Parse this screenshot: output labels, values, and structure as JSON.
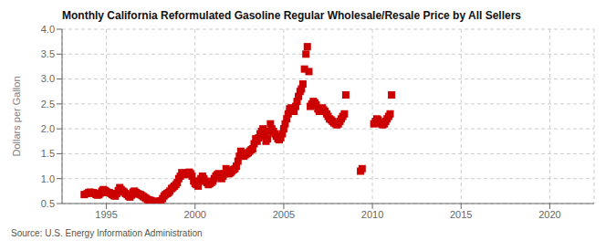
{
  "chart_data": {
    "type": "scatter",
    "title": "Monthly California Reformulated Gasoline Regular Wholesale/Resale Price by All Sellers",
    "ylabel": "Dollars per Gallon",
    "source": "Source: U.S. Energy Information Administration",
    "color": "#CC0000",
    "marker": "square",
    "grid": true,
    "xlim": [
      1992.5,
      2022.5
    ],
    "ylim": [
      0.5,
      4.0
    ],
    "xticks": [
      1995,
      2000,
      2005,
      2010,
      2015,
      2020
    ],
    "yticks": [
      0.5,
      {
        "value": 1.0,
        "label": "1.0"
      },
      1.5,
      {
        "value": 2.0,
        "label": "2.0"
      },
      2.5,
      {
        "value": 3.0,
        "label": "3.0"
      },
      3.5,
      {
        "value": 4.0,
        "label": "4.0"
      }
    ],
    "x": [
      1993.75,
      1993.92,
      1994.0,
      1994.08,
      1994.17,
      1994.25,
      1994.33,
      1994.42,
      1994.5,
      1994.58,
      1994.67,
      1994.75,
      1994.83,
      1994.92,
      1995.0,
      1995.08,
      1995.17,
      1995.25,
      1995.33,
      1995.42,
      1995.5,
      1995.58,
      1995.67,
      1995.75,
      1995.83,
      1995.92,
      1996.0,
      1996.08,
      1996.17,
      1996.25,
      1996.33,
      1996.42,
      1996.5,
      1996.58,
      1996.67,
      1996.75,
      1996.83,
      1996.92,
      1997.0,
      1997.08,
      1997.17,
      1997.25,
      1997.33,
      1997.42,
      1997.5,
      1997.58,
      1997.67,
      1997.75,
      1997.83,
      1997.92,
      1998.0,
      1998.08,
      1998.17,
      1998.25,
      1998.33,
      1998.42,
      1998.5,
      1998.58,
      1998.67,
      1998.75,
      1998.83,
      1998.92,
      1999.0,
      1999.08,
      1999.17,
      1999.25,
      1999.33,
      1999.42,
      1999.5,
      1999.58,
      1999.67,
      1999.75,
      1999.83,
      1999.92,
      2000.0,
      2000.08,
      2000.17,
      2000.25,
      2000.33,
      2000.42,
      2000.5,
      2000.58,
      2000.67,
      2000.75,
      2000.83,
      2000.92,
      2001.0,
      2001.08,
      2001.17,
      2001.25,
      2001.33,
      2001.42,
      2001.5,
      2001.58,
      2001.67,
      2001.75,
      2001.83,
      2001.92,
      2002.0,
      2002.08,
      2002.17,
      2002.25,
      2002.33,
      2002.42,
      2002.5,
      2002.58,
      2002.67,
      2002.75,
      2002.83,
      2002.92,
      2003.0,
      2003.08,
      2003.17,
      2003.25,
      2003.33,
      2003.42,
      2003.5,
      2003.58,
      2003.67,
      2003.75,
      2003.83,
      2003.92,
      2004.0,
      2004.08,
      2004.17,
      2004.25,
      2004.33,
      2004.42,
      2004.5,
      2004.58,
      2004.67,
      2004.75,
      2004.83,
      2004.92,
      2005.0,
      2005.08,
      2005.17,
      2005.25,
      2005.33,
      2005.42,
      2005.5,
      2005.58,
      2005.67,
      2005.75,
      2005.83,
      2005.92,
      2006.0,
      2006.08,
      2006.17,
      2006.25,
      2006.33,
      2006.42,
      2006.5,
      2006.58,
      2006.67,
      2006.75,
      2006.83,
      2006.92,
      2007.0,
      2007.08,
      2007.17,
      2007.25,
      2007.33,
      2007.42,
      2007.5,
      2007.58,
      2007.67,
      2007.75,
      2007.83,
      2007.92,
      2008.0,
      2008.08,
      2008.17,
      2008.25,
      2008.33,
      2008.42,
      2008.5,
      2009.33,
      2009.42,
      2010.08,
      2010.17,
      2010.25,
      2010.33,
      2010.42,
      2010.5,
      2010.58,
      2010.67,
      2010.75,
      2010.83,
      2010.92,
      2011.0,
      2011.08
    ],
    "values": [
      0.68,
      0.7,
      0.72,
      0.73,
      0.72,
      0.72,
      0.7,
      0.68,
      0.67,
      0.68,
      0.71,
      0.75,
      0.78,
      0.76,
      0.74,
      0.72,
      0.72,
      0.7,
      0.68,
      0.66,
      0.65,
      0.7,
      0.76,
      0.82,
      0.78,
      0.75,
      0.73,
      0.7,
      0.68,
      0.65,
      0.63,
      0.67,
      0.73,
      0.75,
      0.72,
      0.7,
      0.69,
      0.68,
      0.66,
      0.64,
      0.62,
      0.6,
      0.58,
      0.57,
      0.56,
      0.55,
      0.53,
      0.52,
      0.52,
      0.54,
      0.55,
      0.55,
      0.6,
      0.65,
      0.68,
      0.7,
      0.72,
      0.75,
      0.8,
      0.82,
      0.85,
      0.88,
      0.92,
      1.0,
      1.05,
      1.12,
      1.1,
      1.08,
      1.1,
      1.12,
      1.13,
      1.1,
      1.05,
      0.95,
      0.9,
      0.88,
      0.85,
      0.95,
      1.0,
      1.05,
      1.0,
      0.95,
      0.92,
      0.88,
      0.9,
      0.92,
      0.95,
      1.0,
      1.05,
      1.08,
      1.1,
      1.05,
      1.0,
      1.05,
      1.1,
      1.2,
      1.1,
      1.1,
      1.12,
      1.15,
      1.18,
      1.2,
      1.25,
      1.35,
      1.45,
      1.55,
      1.5,
      1.45,
      1.48,
      1.5,
      1.52,
      1.55,
      1.58,
      1.6,
      1.7,
      1.8,
      1.75,
      1.82,
      1.9,
      1.95,
      2.0,
      1.85,
      1.75,
      1.8,
      1.95,
      2.1,
      2.0,
      1.95,
      1.9,
      1.85,
      1.8,
      1.78,
      1.82,
      1.9,
      2.0,
      2.1,
      2.2,
      2.3,
      2.4,
      2.42,
      2.38,
      2.35,
      2.45,
      2.55,
      2.65,
      2.75,
      2.8,
      2.9,
      3.2,
      3.5,
      3.65,
      3.15,
      2.45,
      2.5,
      2.55,
      2.52,
      2.48,
      2.4,
      2.35,
      2.4,
      2.42,
      2.38,
      2.35,
      2.3,
      2.25,
      2.2,
      2.18,
      2.15,
      2.12,
      2.1,
      2.08,
      2.1,
      2.15,
      2.2,
      2.25,
      2.3,
      2.68,
      1.15,
      1.2,
      2.1,
      2.15,
      2.2,
      2.18,
      2.12,
      2.1,
      2.08,
      2.1,
      2.15,
      2.2,
      2.25,
      2.3,
      2.68
    ]
  }
}
